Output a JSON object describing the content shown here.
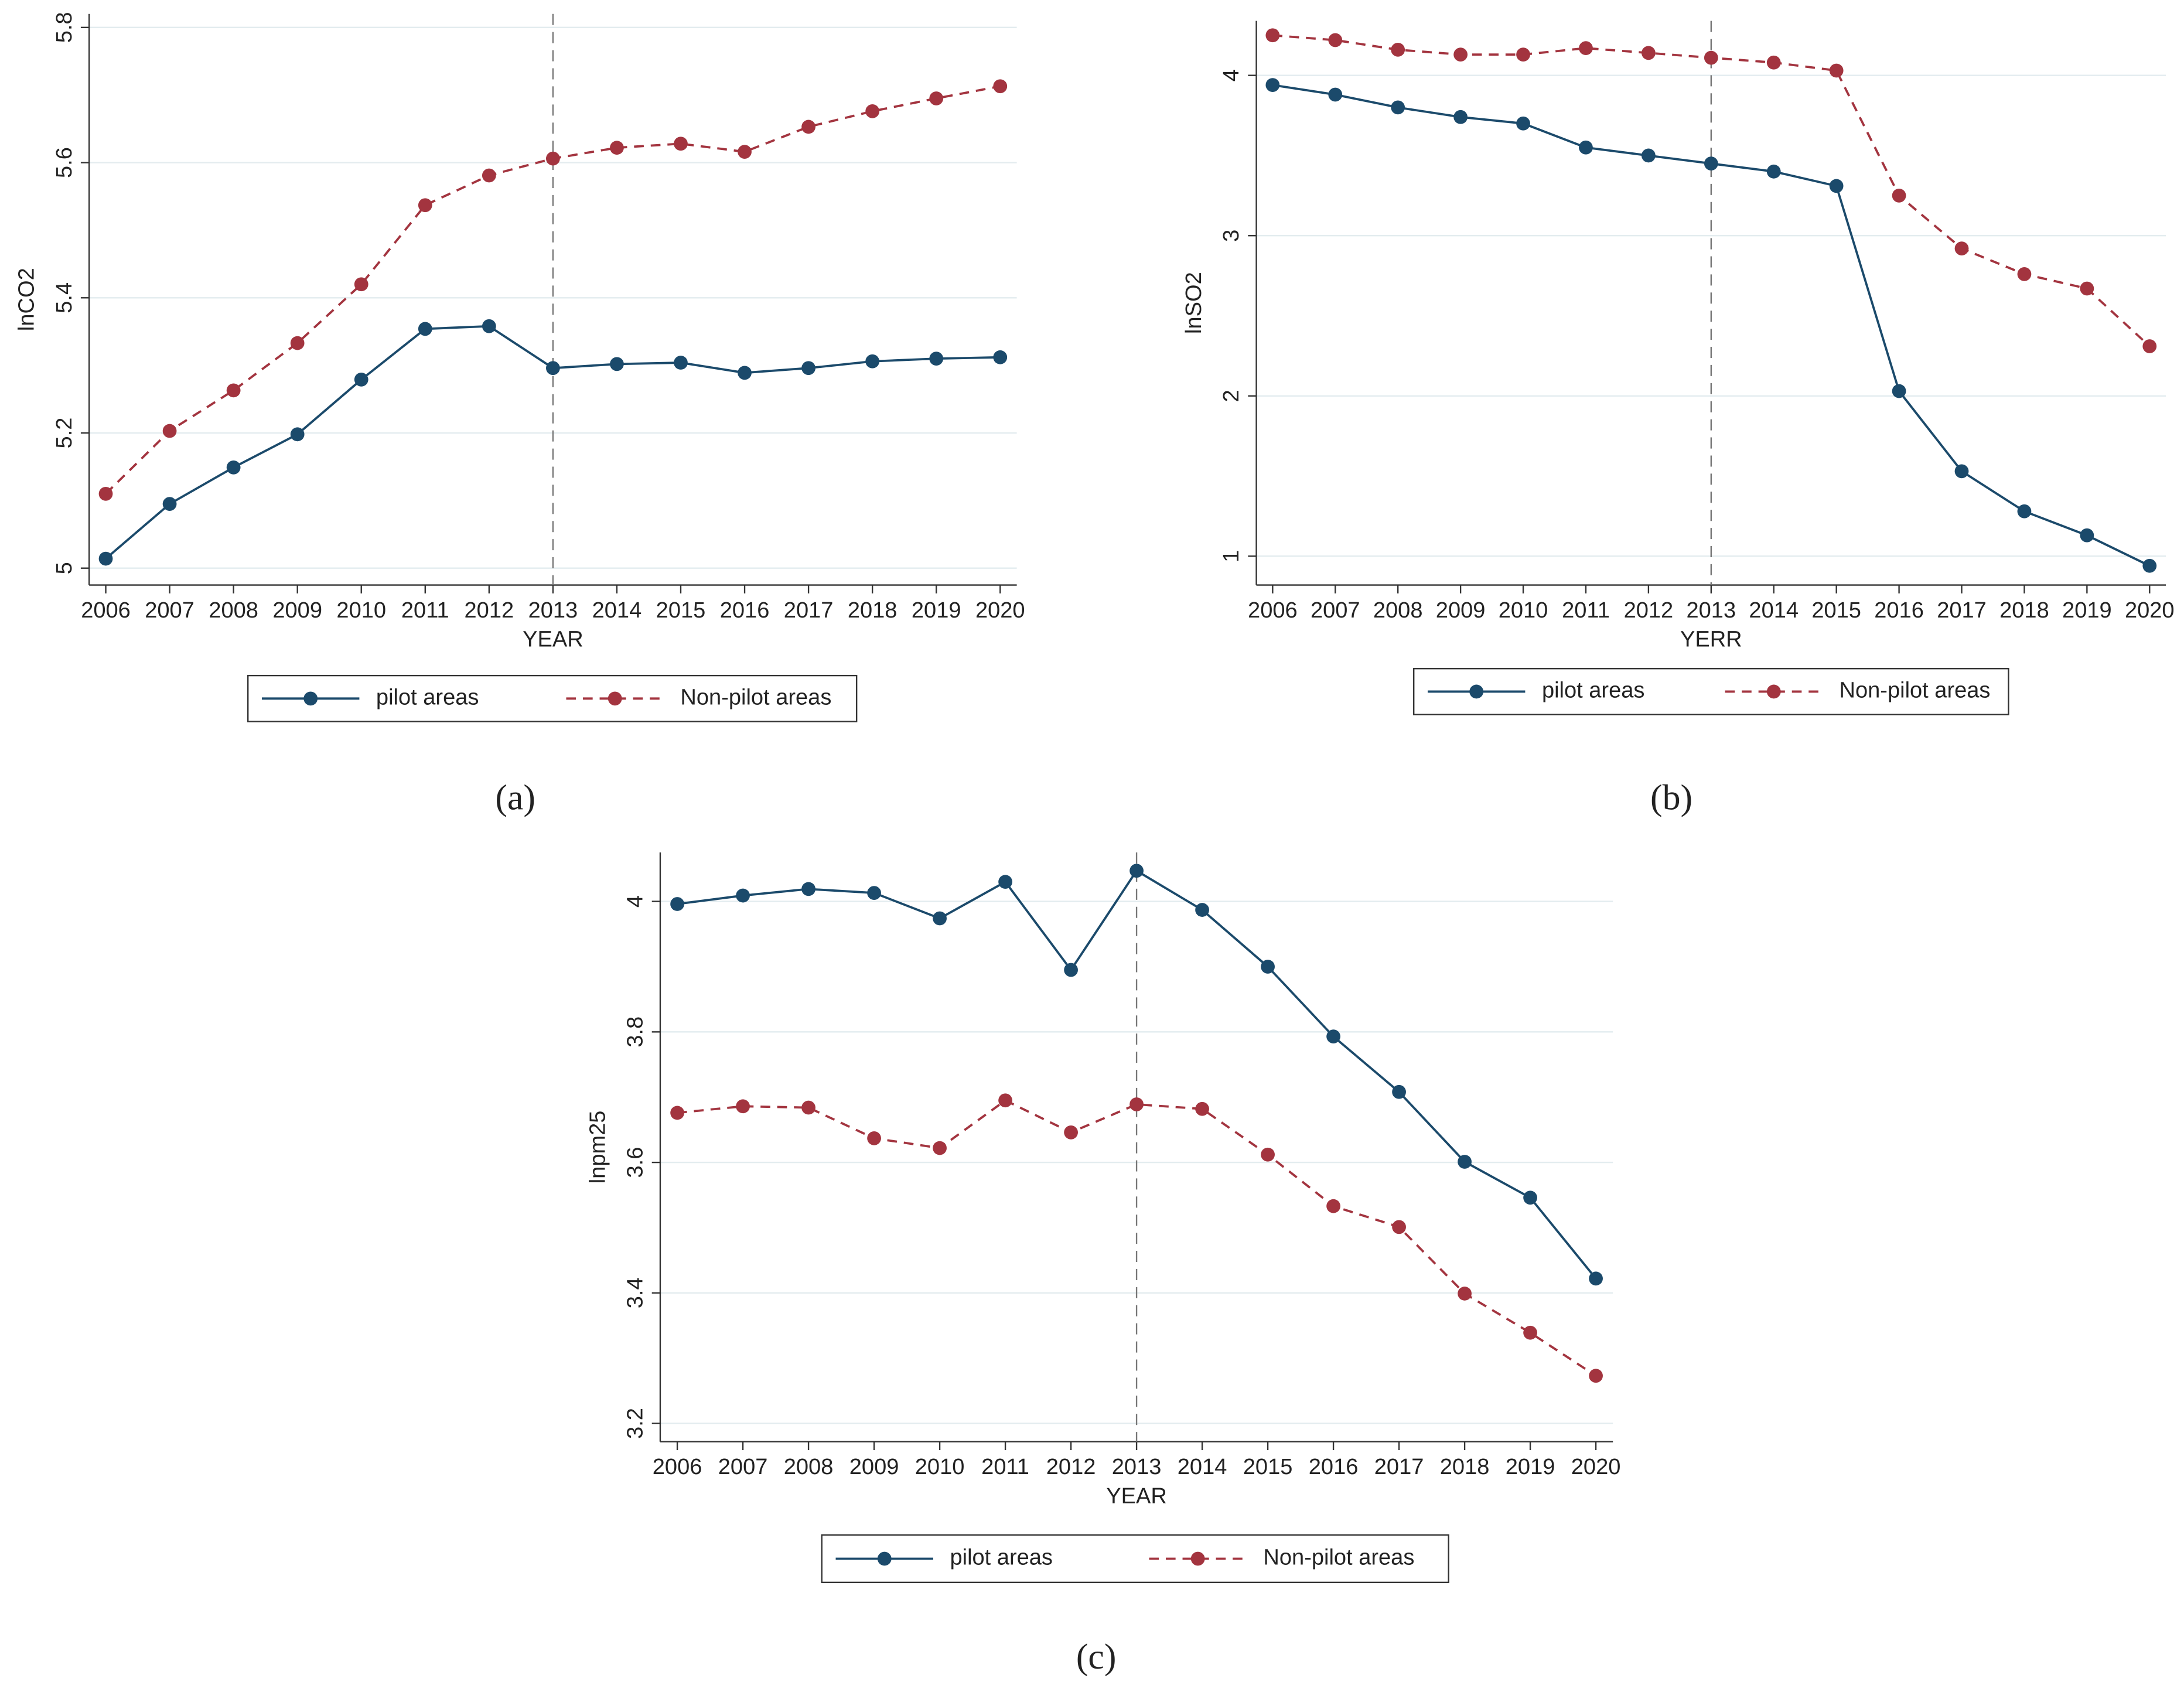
{
  "chart_data": [
    {
      "type": "line",
      "xlabel": "YEAR",
      "ylabel": "lnCO2",
      "caption": "(a)",
      "x": [
        2006,
        2007,
        2008,
        2009,
        2010,
        2011,
        2012,
        2013,
        2014,
        2015,
        2016,
        2017,
        2018,
        2019,
        2020
      ],
      "xlim": [
        2005.74,
        2020.26
      ],
      "xticks": [
        2006,
        2007,
        2008,
        2009,
        2010,
        2011,
        2012,
        2013,
        2014,
        2015,
        2016,
        2017,
        2018,
        2019,
        2020
      ],
      "ylim": [
        4.975,
        5.82
      ],
      "yticks": [
        5,
        5.2,
        5.4,
        5.6,
        5.8
      ],
      "grid": true,
      "vline": 2013,
      "series": [
        {
          "name": "pilot areas",
          "color": "#1b4a6b",
          "dash": false,
          "values": [
            5.014,
            5.095,
            5.149,
            5.198,
            5.279,
            5.354,
            5.358,
            5.296,
            5.302,
            5.304,
            5.289,
            5.296,
            5.306,
            5.31,
            5.312
          ]
        },
        {
          "name": "Non-pilot areas",
          "color": "#a3343f",
          "dash": true,
          "values": [
            5.11,
            5.203,
            5.263,
            5.333,
            5.42,
            5.537,
            5.581,
            5.606,
            5.622,
            5.628,
            5.616,
            5.653,
            5.676,
            5.695,
            5.713
          ]
        }
      ]
    },
    {
      "type": "line",
      "xlabel": "YERR",
      "ylabel": "lnSO2",
      "caption": "(b)",
      "x": [
        2006,
        2007,
        2008,
        2009,
        2010,
        2011,
        2012,
        2013,
        2014,
        2015,
        2016,
        2017,
        2018,
        2019,
        2020
      ],
      "xlim": [
        2005.74,
        2020.26
      ],
      "xticks": [
        2006,
        2007,
        2008,
        2009,
        2010,
        2011,
        2012,
        2013,
        2014,
        2015,
        2016,
        2017,
        2018,
        2019,
        2020
      ],
      "ylim": [
        0.82,
        4.34
      ],
      "yticks": [
        1,
        2,
        3,
        4
      ],
      "grid": true,
      "vline": 2013,
      "series": [
        {
          "name": "pilot areas",
          "color": "#1b4a6b",
          "dash": false,
          "values": [
            3.94,
            3.88,
            3.8,
            3.74,
            3.7,
            3.55,
            3.5,
            3.45,
            3.4,
            3.31,
            2.03,
            1.53,
            1.28,
            1.13,
            0.94
          ]
        },
        {
          "name": "Non-pilot areas",
          "color": "#a3343f",
          "dash": true,
          "values": [
            4.25,
            4.22,
            4.16,
            4.13,
            4.13,
            4.17,
            4.14,
            4.11,
            4.08,
            4.03,
            3.25,
            2.92,
            2.76,
            2.67,
            2.31
          ]
        }
      ]
    },
    {
      "type": "line",
      "xlabel": "YEAR",
      "ylabel": "lnpm25",
      "caption": "(c)",
      "x": [
        2006,
        2007,
        2008,
        2009,
        2010,
        2011,
        2012,
        2013,
        2014,
        2015,
        2016,
        2017,
        2018,
        2019,
        2020
      ],
      "xlim": [
        2005.74,
        2020.26
      ],
      "xticks": [
        2006,
        2007,
        2008,
        2009,
        2010,
        2011,
        2012,
        2013,
        2014,
        2015,
        2016,
        2017,
        2018,
        2019,
        2020
      ],
      "ylim": [
        3.172,
        4.075
      ],
      "yticks": [
        3.2,
        3.4,
        3.6,
        3.8,
        4
      ],
      "grid": true,
      "vline": 2013,
      "series": [
        {
          "name": "pilot areas",
          "color": "#1b4a6b",
          "dash": false,
          "values": [
            3.996,
            4.009,
            4.019,
            4.013,
            3.974,
            4.03,
            3.895,
            4.047,
            3.987,
            3.9,
            3.793,
            3.708,
            3.601,
            3.546,
            3.422
          ]
        },
        {
          "name": "Non-pilot areas",
          "color": "#a3343f",
          "dash": true,
          "values": [
            3.676,
            3.686,
            3.684,
            3.637,
            3.622,
            3.695,
            3.646,
            3.689,
            3.682,
            3.612,
            3.533,
            3.501,
            3.399,
            3.339,
            3.273
          ]
        }
      ]
    }
  ]
}
